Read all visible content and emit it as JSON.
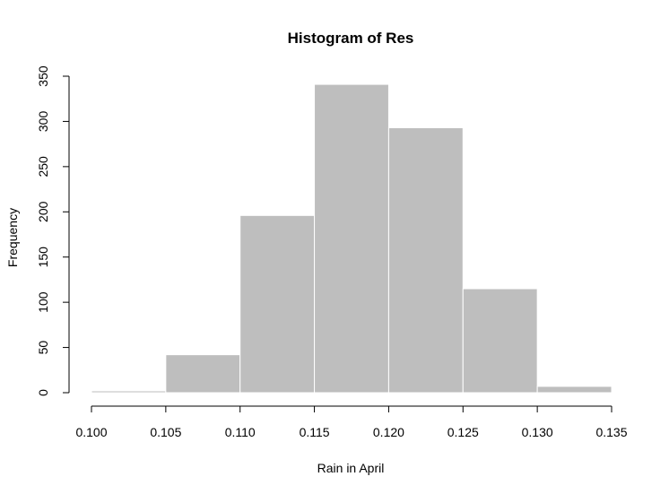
{
  "chart_data": {
    "type": "bar",
    "title": "Histogram of Res",
    "xlabel": "Rain in April",
    "ylabel": "Frequency",
    "bins": [
      {
        "start": 0.1,
        "end": 0.105,
        "count": 2
      },
      {
        "start": 0.105,
        "end": 0.11,
        "count": 42
      },
      {
        "start": 0.11,
        "end": 0.115,
        "count": 196
      },
      {
        "start": 0.115,
        "end": 0.12,
        "count": 341
      },
      {
        "start": 0.12,
        "end": 0.125,
        "count": 293
      },
      {
        "start": 0.125,
        "end": 0.13,
        "count": 115
      },
      {
        "start": 0.13,
        "end": 0.135,
        "count": 7
      }
    ],
    "x_ticks": [
      "0.100",
      "0.105",
      "0.110",
      "0.115",
      "0.120",
      "0.125",
      "0.130",
      "0.135"
    ],
    "y_ticks": [
      "0",
      "50",
      "100",
      "150",
      "200",
      "250",
      "300",
      "350"
    ],
    "xlim": [
      0.1,
      0.135
    ],
    "ylim": [
      0,
      350
    ],
    "grid": false,
    "colors": {
      "bar_fill": "#bebebe",
      "bar_border": "#ffffff",
      "axis": "#000000"
    }
  }
}
